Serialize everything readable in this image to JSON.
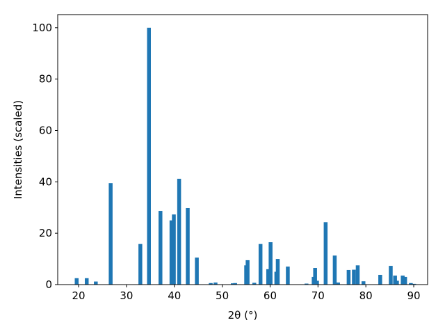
{
  "chart_data": {
    "type": "bar",
    "xlabel": "2θ (°)",
    "ylabel": "Intensities (scaled)",
    "color": "#1f77b4",
    "x": [
      19.6,
      21.7,
      23.6,
      26.7,
      32.9,
      34.7,
      37.1,
      39.4,
      39.9,
      41.0,
      42.8,
      44.7,
      47.6,
      48.6,
      52.2,
      52.7,
      55.0,
      55.3,
      56.7,
      58.0,
      59.6,
      60.1,
      61.3,
      61.6,
      63.7,
      67.6,
      69.1,
      69.4,
      69.8,
      71.6,
      73.5,
      74.2,
      76.4,
      77.5,
      78.3,
      79.5,
      83.0,
      85.2,
      86.1,
      86.5,
      87.7,
      88.2,
      89.4,
      90.1
    ],
    "values": [
      2.5,
      2.5,
      1.2,
      39.5,
      15.8,
      100,
      28.7,
      25,
      27.3,
      41.2,
      29.8,
      10.5,
      0.6,
      0.8,
      0.5,
      0.6,
      7.5,
      9.5,
      0.7,
      15.8,
      6,
      16.5,
      5,
      10,
      7,
      0.4,
      3,
      6.5,
      1.5,
      24.3,
      11.3,
      0.8,
      5.7,
      5.8,
      7.5,
      1.3,
      3.8,
      7.3,
      3.5,
      1.5,
      3.5,
      3,
      0.6,
      0.3
    ],
    "xlim": [
      15.64,
      92.9
    ],
    "ylim": [
      0,
      105.1
    ],
    "xticks": [
      20,
      30,
      40,
      50,
      60,
      70,
      80,
      90
    ],
    "yticks": [
      0,
      20,
      40,
      60,
      80,
      100
    ]
  }
}
